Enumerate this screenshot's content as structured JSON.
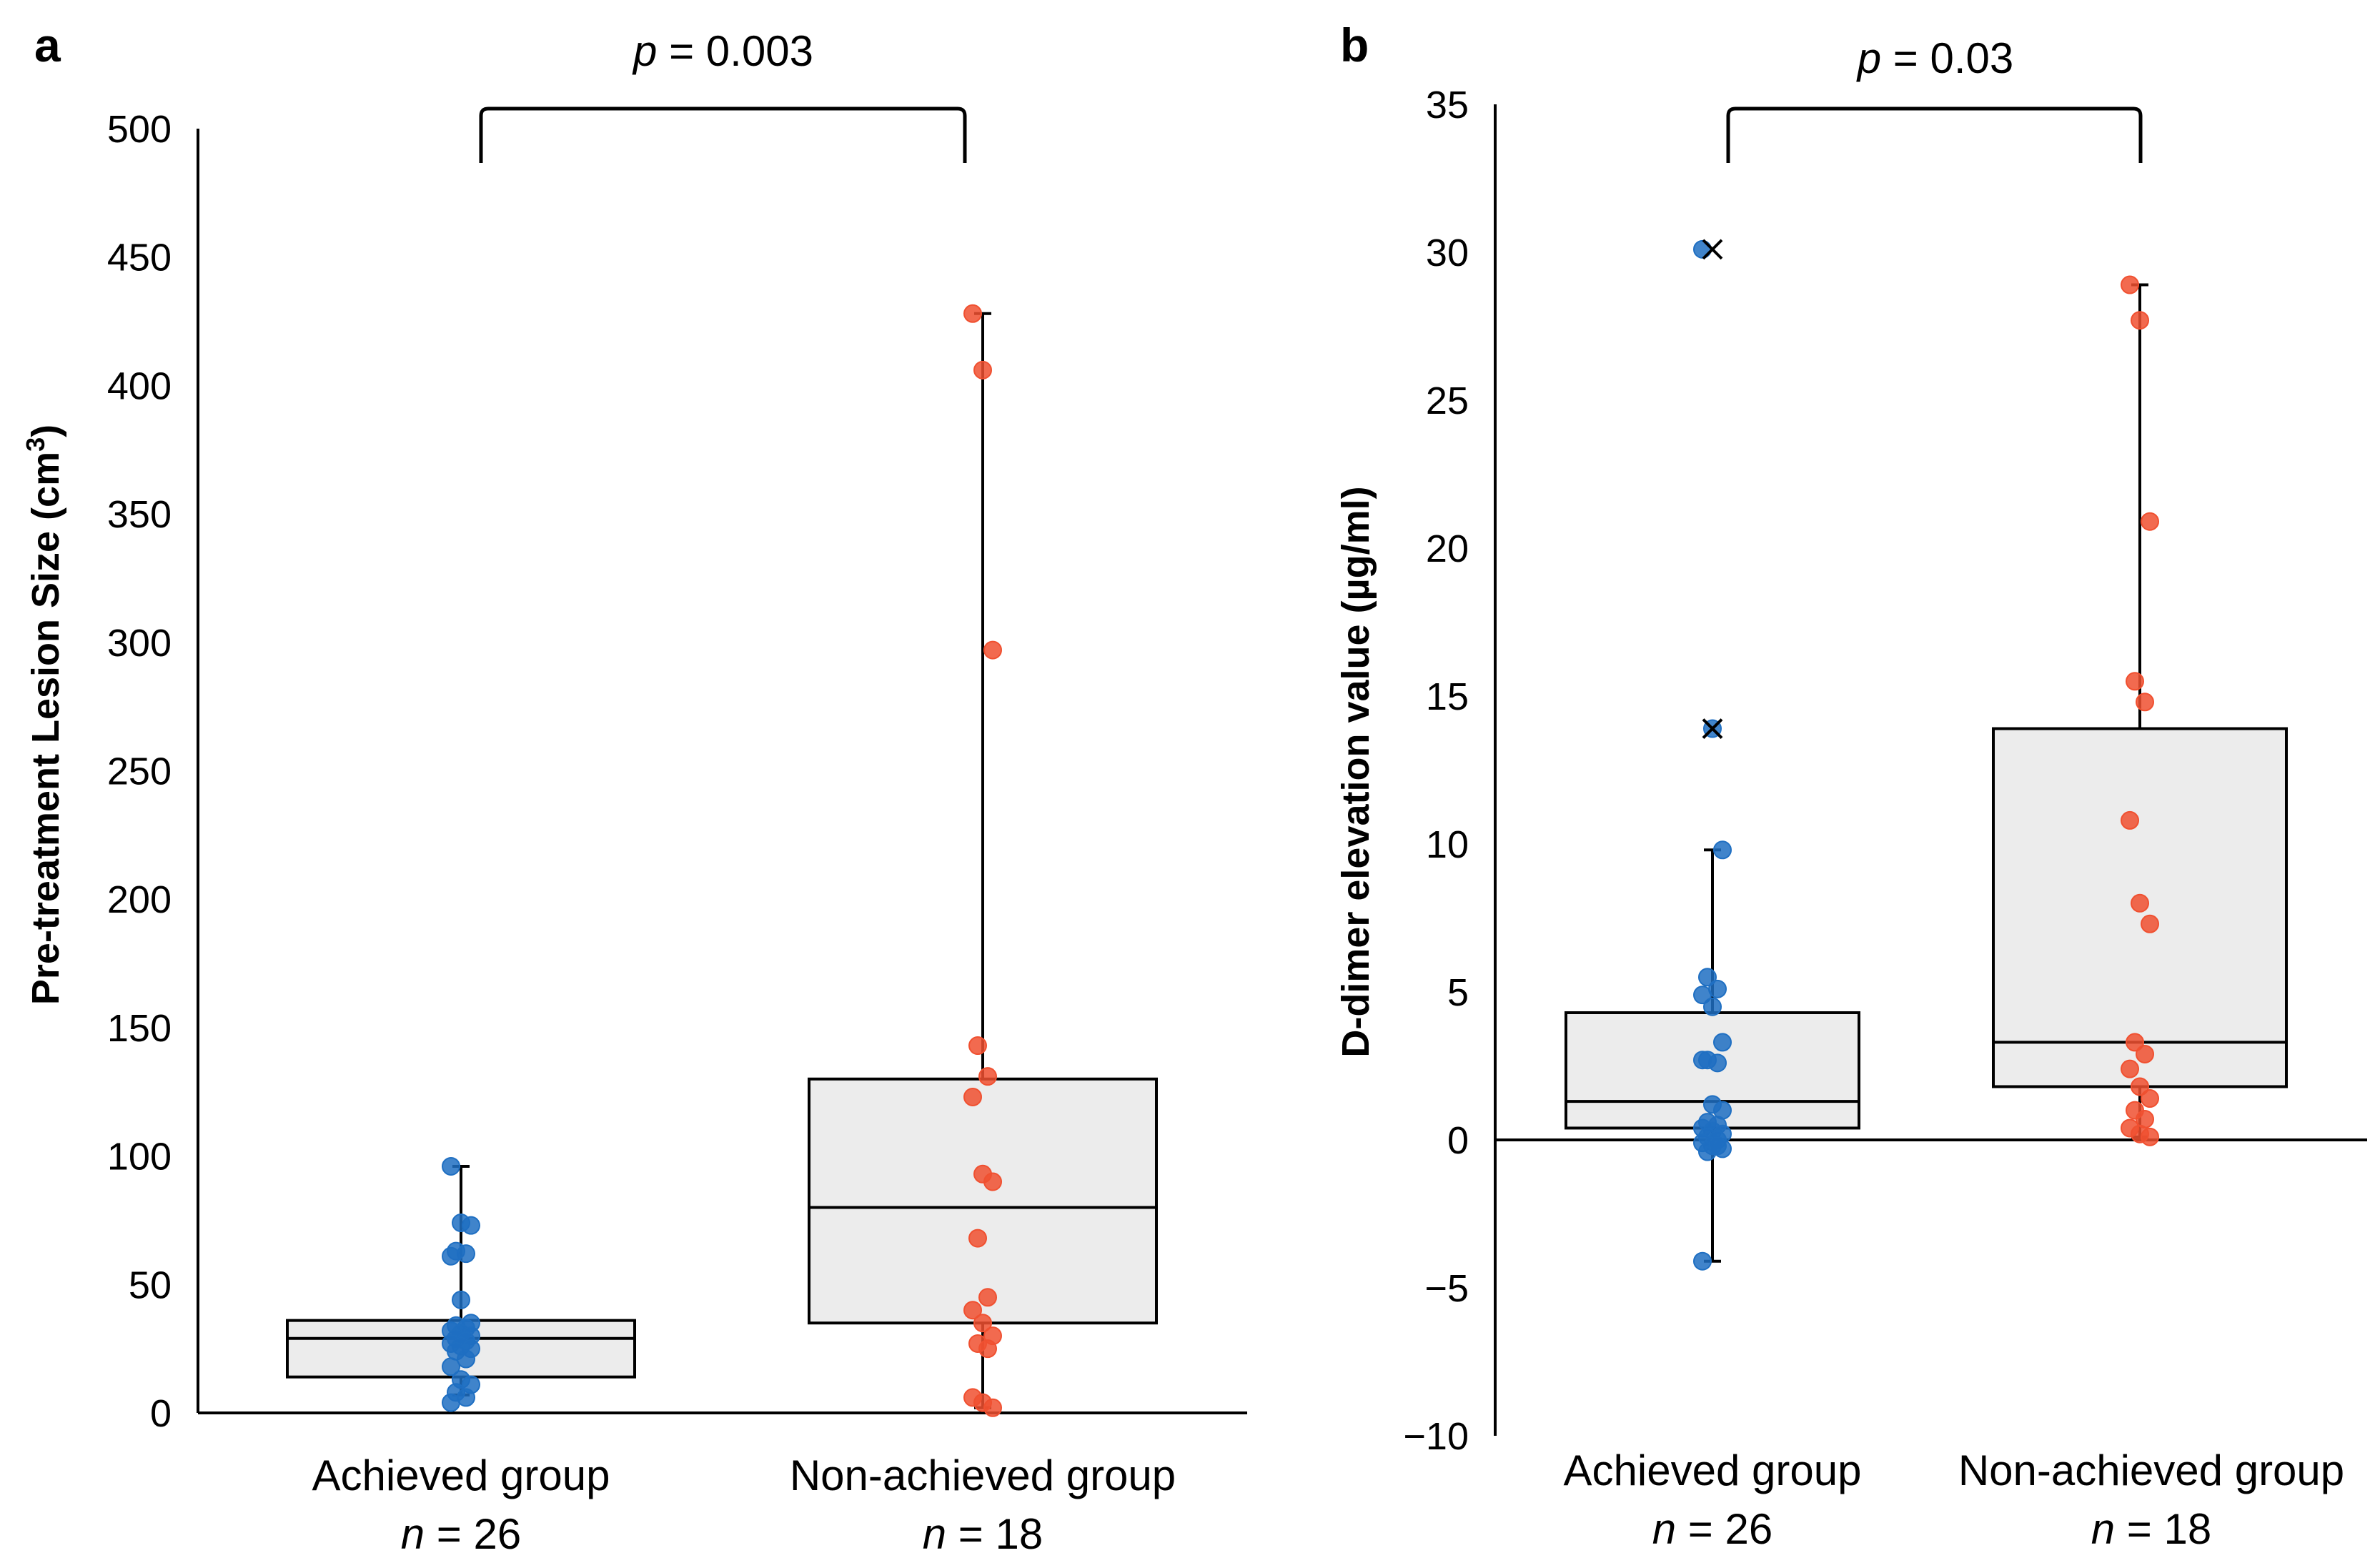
{
  "chart_data": [
    {
      "type": "box",
      "panel_label": "a",
      "title": "",
      "ylabel": "Pre-treatment Lesion Size (cm3)",
      "ylabel_main": "Pre-treatment Lesion Size (cm",
      "ylabel_sup": "3",
      "ylabel_end": ")",
      "ylim": [
        0,
        500
      ],
      "yticks": [
        0,
        50,
        100,
        150,
        200,
        250,
        300,
        350,
        400,
        450,
        500
      ],
      "p_label": "p",
      "p_value": " = 0.003",
      "groups": [
        {
          "name": "Achieved group",
          "n_label": "n",
          "n_value": " = 26",
          "color": "#1f6fc2",
          "whisker_low": 7,
          "q1": 14,
          "median": 29,
          "q3": 36,
          "whisker_high": 96,
          "points": [
            96,
            74,
            73,
            63,
            62,
            61,
            44,
            35,
            34,
            33,
            32,
            31,
            30,
            29,
            28,
            27,
            26,
            25,
            24,
            21,
            18,
            13,
            11,
            8,
            6,
            4
          ],
          "outliers": []
        },
        {
          "name": "Non-achieved group",
          "n_label": "n",
          "n_value": " = 18",
          "color": "#f05030",
          "whisker_low": 2,
          "q1": 35,
          "median": 80,
          "q3": 130,
          "whisker_high": 428,
          "points": [
            428,
            406,
            297,
            143,
            131,
            123,
            93,
            90,
            68,
            45,
            40,
            35,
            30,
            27,
            25,
            6,
            4,
            2
          ],
          "outliers": []
        }
      ]
    },
    {
      "type": "box",
      "panel_label": "b",
      "title": "",
      "ylabel": "D-dimer elevation value (µg/ml)",
      "ylim": [
        -10,
        35
      ],
      "yticks": [
        -10,
        -5,
        0,
        5,
        10,
        15,
        20,
        25,
        30,
        35
      ],
      "ytick_labels": [
        "−10",
        "−5",
        "0",
        "5",
        "10",
        "15",
        "20",
        "25",
        "30",
        "35"
      ],
      "p_label": "p",
      "p_value": " = 0.03",
      "groups": [
        {
          "name": "Achieved group",
          "n_label": "n",
          "n_value": " = 26",
          "color": "#1f6fc2",
          "whisker_low": -4.1,
          "q1": 0.4,
          "median": 1.3,
          "q3": 4.3,
          "whisker_high": 9.8,
          "points": [
            30.1,
            13.9,
            9.8,
            5.5,
            5.1,
            4.9,
            4.5,
            3.3,
            2.7,
            2.6,
            2.7,
            1.2,
            1.0,
            0.6,
            0.5,
            0.4,
            0.3,
            0.2,
            0.1,
            0.0,
            -0.1,
            -0.2,
            -0.3,
            -0.4,
            -0.2,
            -4.1
          ],
          "outliers": [
            30.1,
            13.9
          ]
        },
        {
          "name": "Non-achieved group",
          "n_label": "n",
          "n_value": " = 18",
          "color": "#f05030",
          "whisker_low": 0.1,
          "q1": 1.8,
          "median": 3.3,
          "q3": 13.9,
          "whisker_high": 28.9,
          "points": [
            28.9,
            27.7,
            20.9,
            15.5,
            14.8,
            10.8,
            8.0,
            7.3,
            3.3,
            2.9,
            2.4,
            1.8,
            1.4,
            1.0,
            0.7,
            0.4,
            0.2,
            0.1
          ],
          "outliers": []
        }
      ]
    }
  ]
}
